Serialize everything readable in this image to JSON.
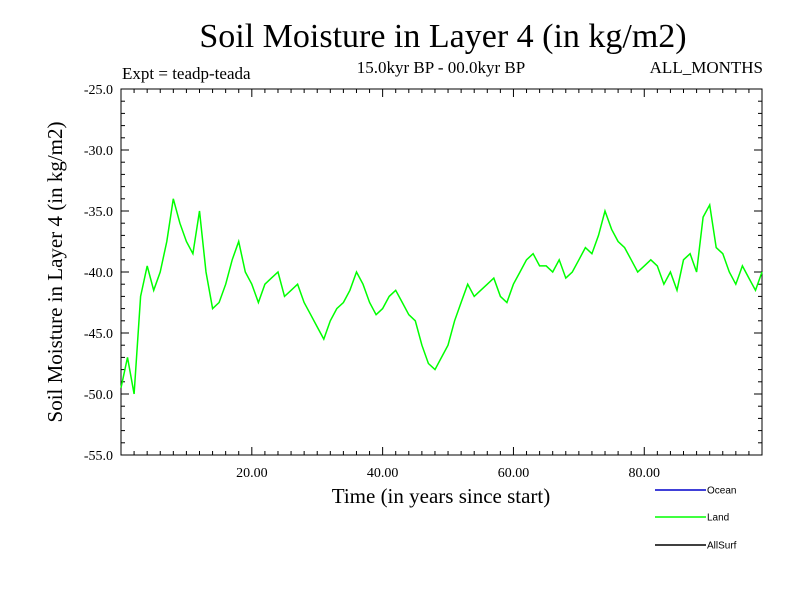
{
  "chart_data": {
    "type": "line",
    "title": "Soil Moisture in Layer 4 (in kg/m2)",
    "subtitle_left": "Expt = teadp-teada",
    "subtitle_center": "15.0kyr BP - 00.0kyr BP",
    "subtitle_right": "ALL_MONTHS",
    "xlabel": "Time (in years since start)",
    "ylabel": "Soil Moisture in Layer 4 (in kg/m2)",
    "xlim": [
      0,
      98
    ],
    "ylim": [
      -55,
      -25
    ],
    "x_ticks": [
      "20.00",
      "40.00",
      "60.00",
      "80.00"
    ],
    "x_tick_values": [
      20,
      40,
      60,
      80
    ],
    "y_ticks": [
      "-25.0",
      "-30.0",
      "-35.0",
      "-40.0",
      "-45.0",
      "-50.0",
      "-55.0"
    ],
    "y_tick_values": [
      -25,
      -30,
      -35,
      -40,
      -45,
      -50,
      -55
    ],
    "grid": false,
    "legend": [
      {
        "name": "Ocean",
        "color": "#0000cc"
      },
      {
        "name": "Land",
        "color": "#00ff00"
      },
      {
        "name": "AllSurf",
        "color": "#000000"
      }
    ],
    "series": [
      {
        "name": "Land",
        "color": "#00ff00",
        "x": [
          0,
          1,
          2,
          3,
          4,
          5,
          6,
          7,
          8,
          9,
          10,
          11,
          12,
          13,
          14,
          15,
          16,
          17,
          18,
          19,
          20,
          21,
          22,
          23,
          24,
          25,
          26,
          27,
          28,
          29,
          30,
          31,
          32,
          33,
          34,
          35,
          36,
          37,
          38,
          39,
          40,
          41,
          42,
          43,
          44,
          45,
          46,
          47,
          48,
          49,
          50,
          51,
          52,
          53,
          54,
          55,
          56,
          57,
          58,
          59,
          60,
          61,
          62,
          63,
          64,
          65,
          66,
          67,
          68,
          69,
          70,
          71,
          72,
          73,
          74,
          75,
          76,
          77,
          78,
          79,
          80,
          81,
          82,
          83,
          84,
          85,
          86,
          87,
          88,
          89,
          90,
          91,
          92,
          93,
          94,
          95,
          96,
          97,
          98
        ],
        "values": [
          -49.5,
          -47.0,
          -50.0,
          -42.0,
          -39.5,
          -41.5,
          -40.0,
          -37.5,
          -34.0,
          -36.0,
          -37.5,
          -38.5,
          -35.0,
          -40.0,
          -43.0,
          -42.5,
          -41.0,
          -39.0,
          -37.5,
          -40.0,
          -41.0,
          -42.5,
          -41.0,
          -40.5,
          -40.0,
          -42.0,
          -41.5,
          -41.0,
          -42.5,
          -43.5,
          -44.5,
          -45.5,
          -44.0,
          -43.0,
          -42.5,
          -41.5,
          -40.0,
          -41.0,
          -42.5,
          -43.5,
          -43.0,
          -42.0,
          -41.5,
          -42.5,
          -43.5,
          -44.0,
          -46.0,
          -47.5,
          -48.0,
          -47.0,
          -46.0,
          -44.0,
          -42.5,
          -41.0,
          -42.0,
          -41.5,
          -41.0,
          -40.5,
          -42.0,
          -42.5,
          -41.0,
          -40.0,
          -39.0,
          -38.5,
          -39.5,
          -39.5,
          -40.0,
          -39.0,
          -40.5,
          -40.0,
          -39.0,
          -38.0,
          -38.5,
          -37.0,
          -35.0,
          -36.5,
          -37.5,
          -38.0,
          -39.0,
          -40.0,
          -39.5,
          -39.0,
          -39.5,
          -41.0,
          -40.0,
          -41.5,
          -39.0,
          -38.5,
          -40.0,
          -35.5,
          -34.5,
          -38.0,
          -38.5,
          -40.0,
          -41.0,
          -39.5,
          -40.5,
          -41.5,
          -40.0
        ]
      }
    ]
  }
}
